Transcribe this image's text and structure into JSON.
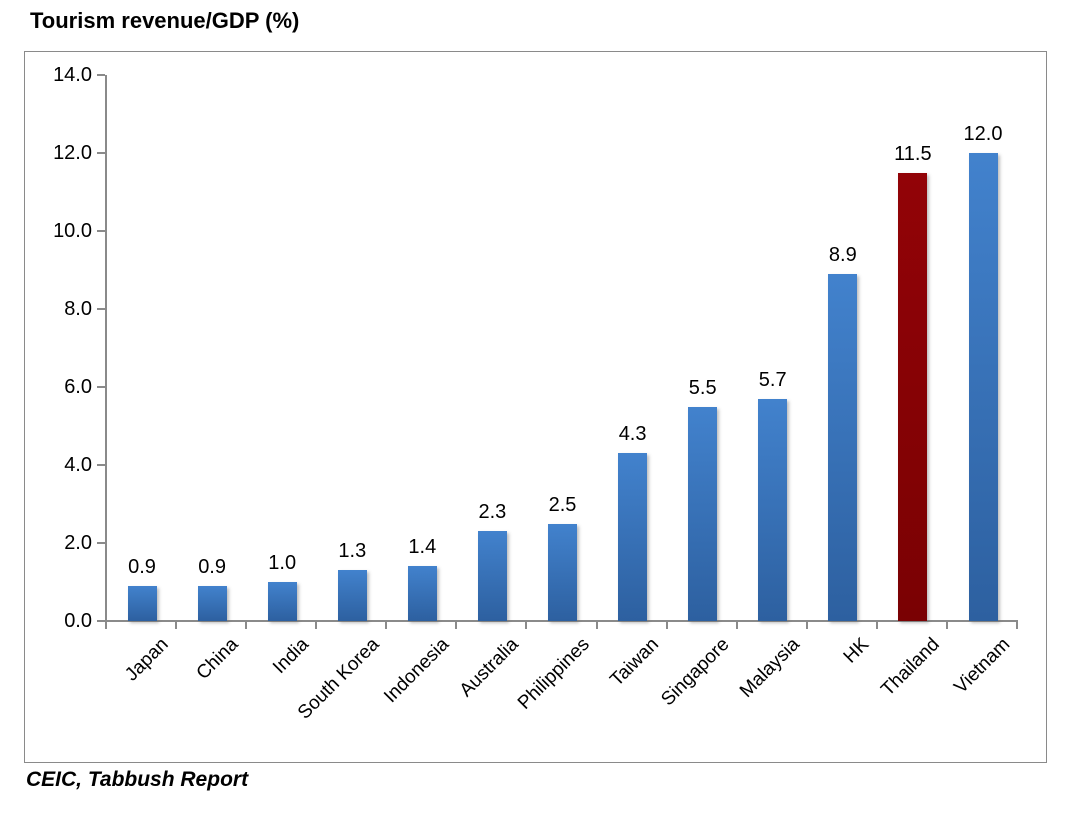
{
  "title": "Tourism revenue/GDP (%)",
  "source": "CEIC, Tabbush Report",
  "chart_data": {
    "type": "bar",
    "title": "Tourism revenue/GDP (%)",
    "categories": [
      "Japan",
      "China",
      "India",
      "South Korea",
      "Indonesia",
      "Australia",
      "Philippines",
      "Taiwan",
      "Singapore",
      "Malaysia",
      "HK",
      "Thailand",
      "Vietnam"
    ],
    "values": [
      0.9,
      0.9,
      1.0,
      1.3,
      1.4,
      2.3,
      2.5,
      4.3,
      5.5,
      5.7,
      8.9,
      11.5,
      12.0
    ],
    "data_labels": [
      "0.9",
      "0.9",
      "1.0",
      "1.3",
      "1.4",
      "2.3",
      "2.5",
      "4.3",
      "5.5",
      "5.7",
      "8.9",
      "11.5",
      "12.0"
    ],
    "ytick_labels": [
      "14.0",
      "12.0",
      "10.0",
      "8.0",
      "6.0",
      "4.0",
      "2.0",
      "0.0"
    ],
    "ylim": [
      0,
      14
    ],
    "xlabel": "",
    "ylabel": "",
    "grid": false,
    "legend": "none",
    "highlight_index": 11,
    "bar_gradient_top": "#4282cd",
    "bar_gradient_bottom": "#2d60a0",
    "highlight_gradient_top": "#920307",
    "highlight_gradient_bottom": "#7a0103",
    "axis_color": "#8a8a8a",
    "text_color": "#000000",
    "source": "CEIC, Tabbush Report"
  }
}
